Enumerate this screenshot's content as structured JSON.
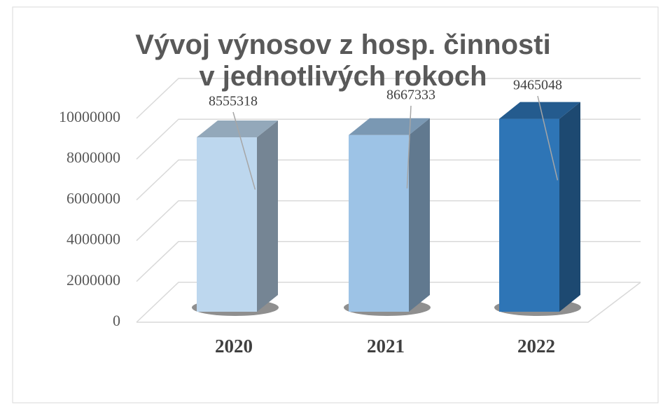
{
  "chart_data": {
    "type": "bar3d",
    "title": "Vývoj výnosov z hosp. činnosti v jednotlivých rokoch",
    "categories": [
      "2020",
      "2021",
      "2022"
    ],
    "values": [
      8555318,
      8667333,
      9465048
    ],
    "colors": [
      "#bdd7ee",
      "#9dc3e6",
      "#2e75b6"
    ],
    "ylim": [
      0,
      10000000
    ],
    "yticks": [
      0,
      2000000,
      4000000,
      6000000,
      8000000,
      10000000
    ],
    "grid": true
  }
}
